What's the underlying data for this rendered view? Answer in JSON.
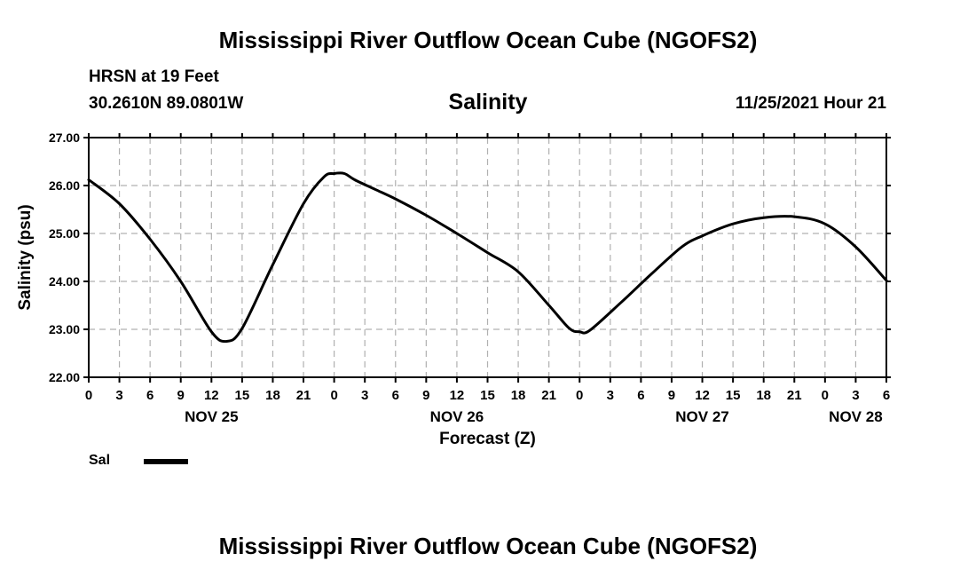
{
  "header": {
    "title": "Mississippi River Outflow Ocean Cube (NGOFS2)",
    "station": "HRSN at 19 Feet",
    "coords": "30.2610N  89.0801W",
    "subtitle": "Salinity",
    "datetime": "11/25/2021 Hour 21"
  },
  "footer": {
    "title": "Mississippi River Outflow Ocean Cube (NGOFS2)"
  },
  "legend": {
    "label": "Sal"
  },
  "chart_data": {
    "type": "line",
    "title": "Salinity",
    "xlabel": "Forecast (Z)",
    "ylabel": "Salinity (psu)",
    "x_unit": "hours since NOV 25 00Z",
    "xlim": [
      0,
      78
    ],
    "ylim": [
      22.0,
      27.0
    ],
    "yticks": [
      "22.00",
      "23.00",
      "24.00",
      "25.00",
      "26.00",
      "27.00"
    ],
    "xtick_labels": [
      "0",
      "3",
      "6",
      "9",
      "12",
      "15",
      "18",
      "21",
      "0",
      "3",
      "6",
      "9",
      "12",
      "15",
      "18",
      "21",
      "0",
      "3",
      "6",
      "9",
      "12",
      "15",
      "18",
      "21",
      "0",
      "3",
      "6"
    ],
    "date_labels": [
      {
        "label": "NOV 25",
        "x": 12
      },
      {
        "label": "NOV 26",
        "x": 36
      },
      {
        "label": "NOV 27",
        "x": 60
      },
      {
        "label": "NOV 28",
        "x": 75
      }
    ],
    "grid": true,
    "legend_position": "bottom-left",
    "series": [
      {
        "name": "Sal",
        "color": "#000000",
        "x": [
          0,
          3,
          6,
          9,
          12,
          13.5,
          15,
          18,
          21,
          23,
          24,
          25,
          26,
          28,
          30,
          33,
          36,
          39,
          42,
          45,
          47,
          48,
          49,
          52,
          55,
          58,
          60,
          63,
          66,
          69,
          72,
          75,
          78
        ],
        "values": [
          26.12,
          25.62,
          24.88,
          24.0,
          22.95,
          22.75,
          23.02,
          24.35,
          25.62,
          26.18,
          26.25,
          26.25,
          26.12,
          25.92,
          25.72,
          25.38,
          25.0,
          24.6,
          24.2,
          23.5,
          23.02,
          22.95,
          22.98,
          23.55,
          24.15,
          24.72,
          24.95,
          25.2,
          25.33,
          25.35,
          25.2,
          24.72,
          24.02
        ]
      }
    ]
  }
}
